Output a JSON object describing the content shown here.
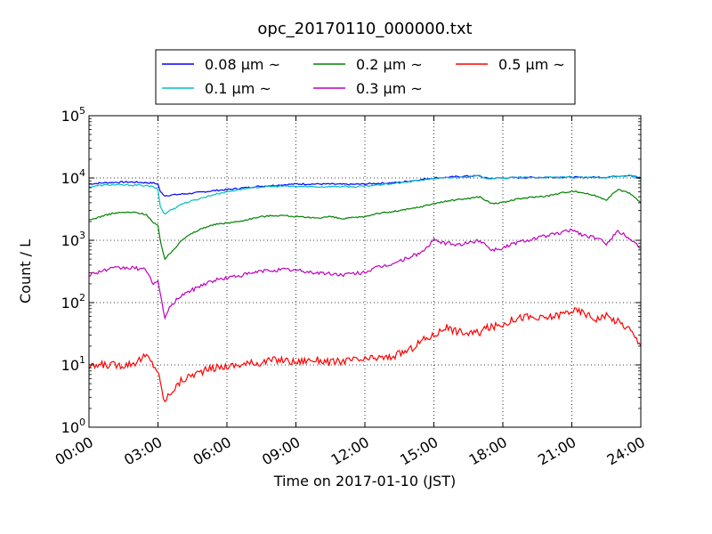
{
  "chart_data": {
    "type": "line",
    "title": "opc_20170110_000000.txt",
    "xlabel": "Time on 2017-01-10 (JST)",
    "ylabel": "Count / L",
    "yscale": "log",
    "xlim": [
      0,
      24
    ],
    "ylim": [
      1,
      100000
    ],
    "grid": true,
    "legend_position": "top-center, outside plot",
    "x_ticks": [
      {
        "value": 0,
        "label": "00:00"
      },
      {
        "value": 3,
        "label": "03:00"
      },
      {
        "value": 6,
        "label": "06:00"
      },
      {
        "value": 9,
        "label": "09:00"
      },
      {
        "value": 12,
        "label": "12:00"
      },
      {
        "value": 15,
        "label": "15:00"
      },
      {
        "value": 18,
        "label": "18:00"
      },
      {
        "value": 21,
        "label": "21:00"
      },
      {
        "value": 24,
        "label": "24:00"
      }
    ],
    "y_ticks": [
      {
        "value": 1,
        "base": "10",
        "exp": "0"
      },
      {
        "value": 10,
        "base": "10",
        "exp": "1"
      },
      {
        "value": 100,
        "base": "10",
        "exp": "2"
      },
      {
        "value": 1000,
        "base": "10",
        "exp": "3"
      },
      {
        "value": 10000,
        "base": "10",
        "exp": "4"
      },
      {
        "value": 100000,
        "base": "10",
        "exp": "5"
      }
    ],
    "x_hours": [
      0,
      0.5,
      1,
      1.5,
      2,
      2.5,
      2.8,
      3.0,
      3.1,
      3.3,
      3.5,
      3.8,
      4,
      4.5,
      5,
      5.5,
      6,
      6.5,
      7,
      7.5,
      8,
      8.5,
      9,
      9.5,
      10,
      10.5,
      11,
      11.5,
      12,
      12.5,
      13,
      13.5,
      14,
      14.5,
      15,
      15.5,
      16,
      16.5,
      17,
      17.2,
      17.5,
      18,
      18.5,
      19,
      19.5,
      20,
      20.5,
      21,
      21.5,
      22,
      22.5,
      23,
      23.5,
      24
    ],
    "series": [
      {
        "name": "0.08 μm ~",
        "color": "#0000ff",
        "values": [
          8000,
          8300,
          8500,
          8600,
          8600,
          8400,
          8300,
          8000,
          6000,
          5200,
          5300,
          5400,
          5500,
          5700,
          6000,
          6300,
          6500,
          6800,
          7100,
          7400,
          7600,
          7800,
          8000,
          8000,
          8000,
          8000,
          7900,
          7900,
          8000,
          8200,
          8300,
          8500,
          9000,
          9500,
          10000,
          10200,
          10500,
          10700,
          10800,
          10000,
          9900,
          10000,
          10100,
          10200,
          10200,
          10300,
          10300,
          10300,
          10200,
          10300,
          10300,
          10800,
          11000,
          10000
        ]
      },
      {
        "name": "0.1 μm ~",
        "color": "#00bfbf",
        "values": [
          7200,
          7600,
          7800,
          7700,
          7700,
          7500,
          7200,
          6500,
          3500,
          2600,
          3000,
          3400,
          3800,
          4300,
          4900,
          5500,
          6000,
          6500,
          6900,
          7200,
          7300,
          7400,
          7300,
          7300,
          7200,
          7300,
          7300,
          7200,
          7400,
          7700,
          8000,
          8300,
          8800,
          9300,
          9800,
          10000,
          10200,
          10500,
          10800,
          10000,
          9800,
          10000,
          10100,
          10200,
          10200,
          10200,
          10200,
          10200,
          10200,
          10200,
          10200,
          10600,
          10900,
          9800
        ]
      },
      {
        "name": "0.2 μm ~",
        "color": "#008000",
        "values": [
          2100,
          2400,
          2700,
          2800,
          2800,
          2600,
          1900,
          1700,
          1000,
          500,
          600,
          800,
          1000,
          1300,
          1600,
          1800,
          1900,
          2000,
          2200,
          2400,
          2500,
          2500,
          2400,
          2300,
          2300,
          2400,
          2200,
          2300,
          2400,
          2700,
          2800,
          3000,
          3200,
          3500,
          3900,
          4200,
          4500,
          4700,
          5000,
          4500,
          3900,
          4000,
          4500,
          4800,
          5000,
          5200,
          5700,
          6200,
          5800,
          5200,
          4500,
          6500,
          5800,
          4000
        ]
      },
      {
        "name": "0.3 μm ~",
        "color": "#bf00bf",
        "values": [
          280,
          320,
          350,
          360,
          360,
          330,
          200,
          220,
          130,
          60,
          80,
          110,
          130,
          160,
          200,
          230,
          250,
          270,
          290,
          320,
          330,
          340,
          330,
          310,
          300,
          290,
          280,
          290,
          310,
          360,
          400,
          460,
          550,
          650,
          1000,
          900,
          850,
          900,
          1000,
          900,
          700,
          750,
          900,
          1000,
          1100,
          1200,
          1300,
          1500,
          1200,
          1100,
          900,
          1400,
          1100,
          750
        ]
      },
      {
        "name": "0.5 μm ~",
        "color": "#ff0000",
        "values": [
          9,
          10,
          10,
          10,
          11,
          14,
          10,
          8,
          5,
          2.5,
          3.5,
          4.5,
          5.5,
          7,
          8,
          9,
          9.5,
          10,
          10.5,
          11,
          12,
          12,
          11,
          12,
          12,
          11,
          11.5,
          12,
          12,
          13,
          13,
          15,
          18,
          25,
          30,
          40,
          35,
          32,
          33,
          38,
          40,
          45,
          55,
          60,
          55,
          58,
          65,
          75,
          70,
          55,
          60,
          50,
          38,
          20
        ]
      }
    ]
  }
}
